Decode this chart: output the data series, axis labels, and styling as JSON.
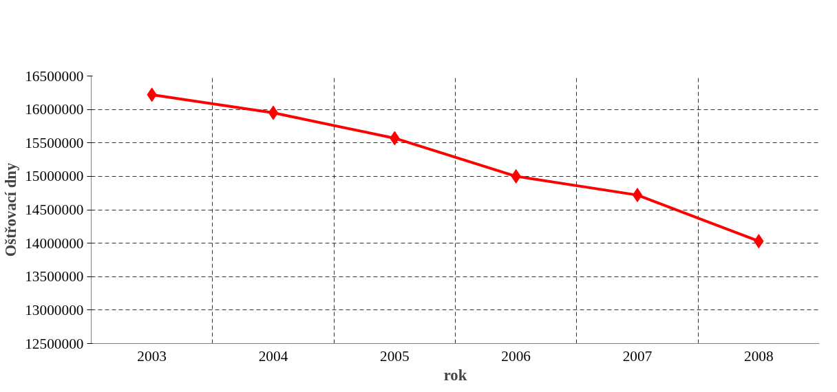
{
  "chart_data": {
    "type": "line",
    "xlabel": "rok",
    "ylabel": "Oštřovací dny",
    "categories": [
      "2003",
      "2004",
      "2005",
      "2006",
      "2007",
      "2008"
    ],
    "series": [
      {
        "color": "#ff0000",
        "values": [
          16220000,
          15950000,
          15570000,
          15000000,
          14720000,
          14030000
        ]
      }
    ],
    "ylim": [
      12500000,
      16500000
    ],
    "yticks": [
      12500000,
      13000000,
      13500000,
      14000000,
      14500000,
      15000000,
      15500000,
      16000000,
      16500000
    ],
    "grid": true,
    "marker": "diamond",
    "line_style": "solid"
  }
}
